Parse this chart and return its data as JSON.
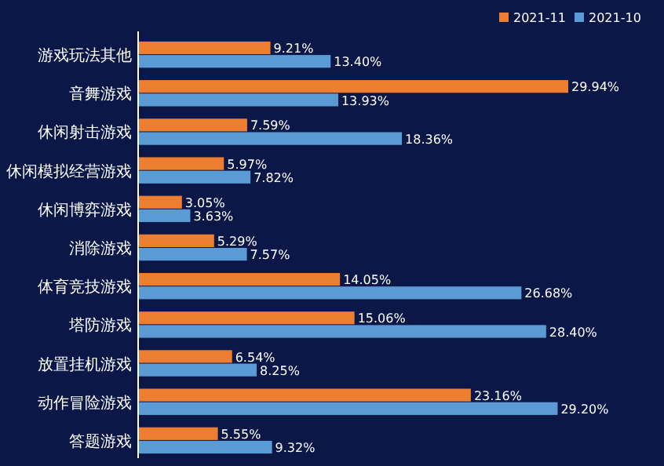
{
  "chart_data": {
    "type": "bar",
    "orientation": "horizontal",
    "legend": "top right",
    "categories": [
      "游戏玩法其他",
      "音舞游戏",
      "休闲射击游戏",
      "休闲模拟经营游戏",
      "休闲博弈游戏",
      "消除游戏",
      "体育竞技游戏",
      "塔防游戏",
      "放置挂机游戏",
      "动作冒险游戏",
      "答题游戏"
    ],
    "series": [
      {
        "name": "2021-11",
        "color": "#ed7d31",
        "values": [
          9.21,
          29.94,
          7.59,
          5.97,
          3.05,
          5.29,
          14.05,
          15.06,
          6.54,
          23.16,
          5.55
        ],
        "value_labels": [
          "9.21%",
          "29.94%",
          "7.59%",
          "5.97%",
          "3.05%",
          "5.29%",
          "14.05%",
          "15.06%",
          "6.54%",
          "23.16%",
          "5.55%"
        ]
      },
      {
        "name": "2021-10",
        "color": "#5b9bd5",
        "values": [
          13.4,
          13.93,
          18.36,
          7.82,
          3.63,
          7.57,
          26.68,
          28.4,
          8.25,
          29.2,
          9.32
        ],
        "value_labels": [
          "13.40%",
          "13.93%",
          "18.36%",
          "7.82%",
          "3.63%",
          "7.57%",
          "26.68%",
          "28.40%",
          "8.25%",
          "29.20%",
          "9.32%"
        ]
      }
    ]
  }
}
